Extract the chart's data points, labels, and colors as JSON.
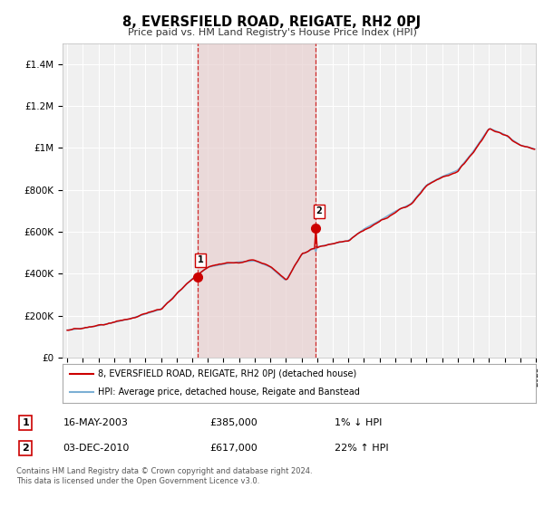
{
  "title": "8, EVERSFIELD ROAD, REIGATE, RH2 0PJ",
  "subtitle": "Price paid vs. HM Land Registry's House Price Index (HPI)",
  "legend_line1": "8, EVERSFIELD ROAD, REIGATE, RH2 0PJ (detached house)",
  "legend_line2": "HPI: Average price, detached house, Reigate and Banstead",
  "transaction1_date": "16-MAY-2003",
  "transaction1_price": 385000,
  "transaction1_hpi": "1% ↓ HPI",
  "transaction2_date": "03-DEC-2010",
  "transaction2_price": 617000,
  "transaction2_hpi": "22% ↑ HPI",
  "footnote": "Contains HM Land Registry data © Crown copyright and database right 2024.\nThis data is licensed under the Open Government Licence v3.0.",
  "hpi_color": "#7bafd4",
  "price_color": "#cc0000",
  "background_color": "#ffffff",
  "plot_bg_color": "#f0f0f0",
  "grid_color": "#ffffff",
  "vband_color": "#e8d0d0",
  "ylim": [
    0,
    1500000
  ],
  "yticks": [
    0,
    200000,
    400000,
    600000,
    800000,
    1000000,
    1200000,
    1400000
  ],
  "ytick_labels": [
    "£0",
    "£200K",
    "£400K",
    "£600K",
    "£800K",
    "£1M",
    "£1.2M",
    "£1.4M"
  ],
  "year_start": 1995,
  "year_end": 2025,
  "t1_year": 2003.37,
  "t2_year": 2010.92,
  "t1_value": 385000,
  "t2_value": 617000
}
